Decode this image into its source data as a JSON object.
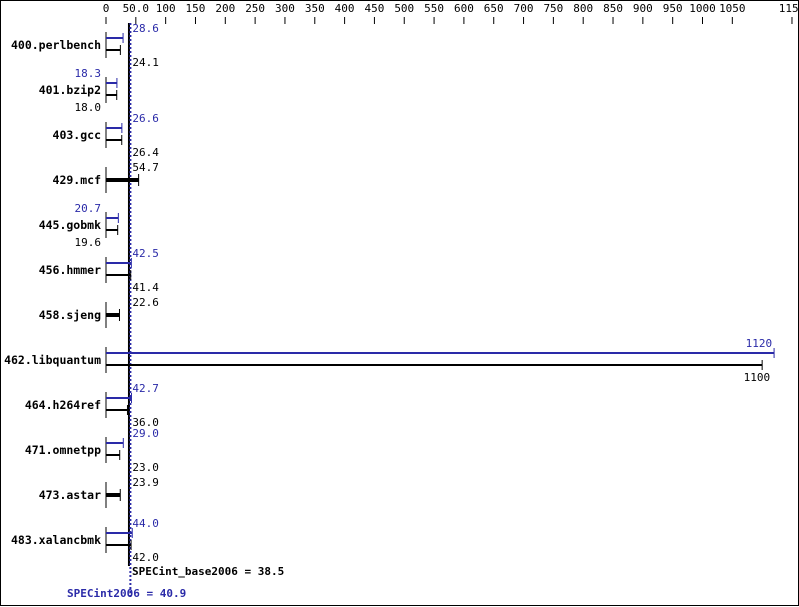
{
  "chart_data": {
    "type": "bar",
    "orientation": "horizontal",
    "x_ticks": [
      "0",
      "50.0",
      "100",
      "150",
      "200",
      "250",
      "300",
      "350",
      "400",
      "450",
      "500",
      "550",
      "600",
      "650",
      "700",
      "750",
      "800",
      "850",
      "900",
      "950",
      "1000",
      "1050",
      "1150"
    ],
    "xlim": [
      0,
      1150
    ],
    "categories": [
      "400.perlbench",
      "401.bzip2",
      "403.gcc",
      "429.mcf",
      "445.gobmk",
      "456.hmmer",
      "458.sjeng",
      "462.libquantum",
      "464.h264ref",
      "471.omnetpp",
      "473.astar",
      "483.xalancbmk"
    ],
    "series": [
      {
        "name": "SPECint2006",
        "values": [
          28.6,
          18.3,
          26.6,
          54.7,
          20.7,
          42.5,
          22.6,
          1120,
          42.7,
          29.0,
          23.9,
          44.0
        ],
        "labels": [
          "28.6",
          "18.3",
          "26.6",
          "",
          "20.7",
          "42.5",
          "",
          "1120",
          "42.7",
          "29.0",
          "",
          "44.0"
        ]
      },
      {
        "name": "SPECint_base2006",
        "values": [
          24.1,
          18.0,
          26.4,
          54.7,
          19.6,
          41.4,
          22.6,
          1100,
          36.0,
          23.0,
          23.9,
          42.0
        ],
        "labels": [
          "24.1",
          "18.0",
          "26.4",
          "54.7",
          "19.6",
          "41.4",
          "22.6",
          "1100",
          "36.0",
          "23.0",
          "23.9",
          "42.0"
        ]
      }
    ],
    "single_bar": [
      false,
      false,
      false,
      true,
      false,
      false,
      true,
      false,
      false,
      false,
      true,
      false
    ],
    "reference_lines": {
      "base": {
        "value": 38.5,
        "label": "SPECint_base2006 = 38.5"
      },
      "peak": {
        "value": 40.9,
        "label": "SPECint2006 = 40.9"
      }
    },
    "colors": {
      "peak": "#2a2aa8",
      "base": "#000000"
    }
  }
}
